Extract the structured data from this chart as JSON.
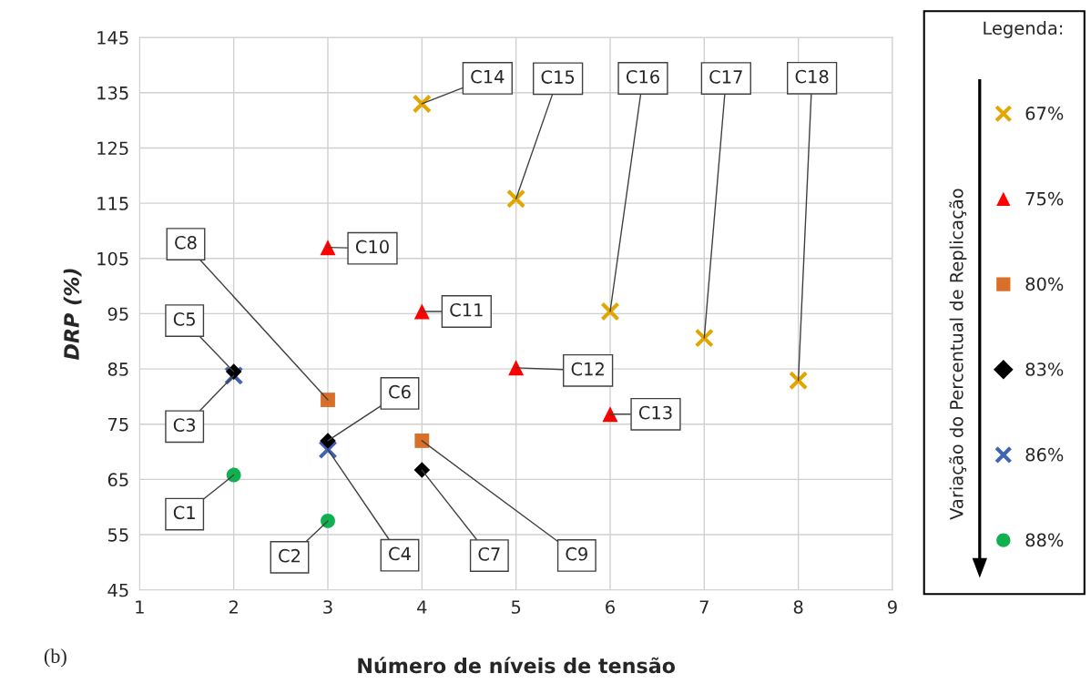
{
  "chart_data": {
    "type": "scatter",
    "xlabel": "Número de níveis de tensão",
    "ylabel": "DRP (%)",
    "legend_title": "Legenda:",
    "xlim": [
      1,
      9
    ],
    "xticks": [
      1,
      2,
      3,
      4,
      5,
      6,
      7,
      8,
      9
    ],
    "ylim": [
      45,
      145
    ],
    "yticks": [
      45,
      55,
      65,
      75,
      85,
      95,
      105,
      115,
      125,
      135,
      145
    ],
    "grid": true,
    "legend": "right",
    "series": [
      {
        "name": "67%",
        "color": "#e3a600",
        "marker": "cross",
        "x": [
          4,
          5,
          6,
          7,
          8
        ],
        "values": [
          133,
          115.8,
          95.4,
          90.6,
          82.9
        ]
      },
      {
        "name": "75%",
        "color": "#ff0000",
        "marker": "triangle",
        "x": [
          3,
          4,
          5,
          6
        ],
        "values": [
          107,
          95.4,
          85.2,
          76.8
        ]
      },
      {
        "name": "80%",
        "color": "#d9702a",
        "marker": "square",
        "x": [
          3,
          4
        ],
        "values": [
          79.4,
          72
        ]
      },
      {
        "name": "83%",
        "color": "#000000",
        "marker": "diamond",
        "x": [
          2,
          3,
          4
        ],
        "values": [
          84.5,
          72,
          66.7
        ]
      },
      {
        "name": "86%",
        "color": "#3f64b4",
        "marker": "cross",
        "x": [
          2,
          3
        ],
        "values": [
          83.8,
          70.4
        ]
      },
      {
        "name": "88%",
        "color": "#10b050",
        "marker": "circle",
        "x": [
          2,
          3
        ],
        "values": [
          65.8,
          57.5
        ]
      }
    ],
    "annotations": [
      {
        "text": "C1",
        "x": 2,
        "y": 65.8
      },
      {
        "text": "C2",
        "x": 3,
        "y": 57.5
      },
      {
        "text": "C3",
        "x": 2,
        "y": 83.8
      },
      {
        "text": "C4",
        "x": 3,
        "y": 70.4
      },
      {
        "text": "C5",
        "x": 2,
        "y": 84.5
      },
      {
        "text": "C6",
        "x": 3,
        "y": 72
      },
      {
        "text": "C7",
        "x": 4,
        "y": 66.7
      },
      {
        "text": "C8",
        "x": 3,
        "y": 79.4
      },
      {
        "text": "C9",
        "x": 4,
        "y": 72
      },
      {
        "text": "C10",
        "x": 3,
        "y": 107
      },
      {
        "text": "C11",
        "x": 4,
        "y": 95.4
      },
      {
        "text": "C12",
        "x": 5,
        "y": 85.2
      },
      {
        "text": "C13",
        "x": 6,
        "y": 76.8
      },
      {
        "text": "C14",
        "x": 4,
        "y": 133
      },
      {
        "text": "C15",
        "x": 5,
        "y": 115.8
      },
      {
        "text": "C16",
        "x": 6,
        "y": 95.4
      },
      {
        "text": "C17",
        "x": 7,
        "y": 90.6
      },
      {
        "text": "C18",
        "x": 8,
        "y": 82.9
      },
      "(b)",
      "Variação do Percentual de Replicação"
    ]
  }
}
